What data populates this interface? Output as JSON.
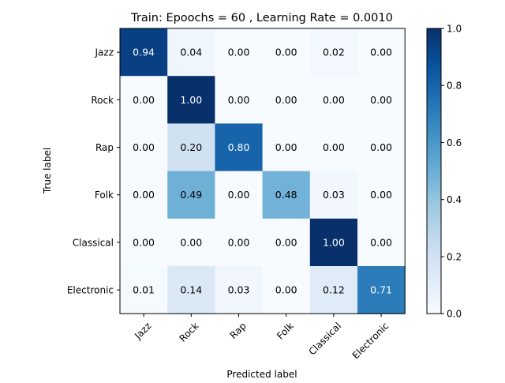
{
  "chart_data": {
    "type": "heatmap",
    "title": "Train: Epoochs =  60 , Learning Rate = 0.0010",
    "xlabel": "Predicted label",
    "ylabel": "True label",
    "x_categories": [
      "Jazz",
      "Rock",
      "Rap",
      "Folk",
      "Classical",
      "Electronic"
    ],
    "y_categories": [
      "Jazz",
      "Rock",
      "Rap",
      "Folk",
      "Classical",
      "Electronic"
    ],
    "values": [
      [
        0.94,
        0.04,
        0.0,
        0.0,
        0.02,
        0.0
      ],
      [
        0.0,
        1.0,
        0.0,
        0.0,
        0.0,
        0.0
      ],
      [
        0.0,
        0.2,
        0.8,
        0.0,
        0.0,
        0.0
      ],
      [
        0.0,
        0.49,
        0.0,
        0.48,
        0.03,
        0.0
      ],
      [
        0.0,
        0.0,
        0.0,
        0.0,
        1.0,
        0.0
      ],
      [
        0.01,
        0.14,
        0.03,
        0.0,
        0.12,
        0.71
      ]
    ],
    "value_labels": [
      [
        "0.94",
        "0.04",
        "0.00",
        "0.00",
        "0.02",
        "0.00"
      ],
      [
        "0.00",
        "1.00",
        "0.00",
        "0.00",
        "0.00",
        "0.00"
      ],
      [
        "0.00",
        "0.20",
        "0.80",
        "0.00",
        "0.00",
        "0.00"
      ],
      [
        "0.00",
        "0.49",
        "0.00",
        "0.48",
        "0.03",
        "0.00"
      ],
      [
        "0.00",
        "0.00",
        "0.00",
        "0.00",
        "1.00",
        "0.00"
      ],
      [
        "0.01",
        "0.14",
        "0.03",
        "0.00",
        "0.12",
        "0.71"
      ]
    ],
    "colormap": "Blues",
    "colorbar": {
      "range": [
        0.0,
        1.0
      ],
      "ticks": [
        0.0,
        0.2,
        0.4,
        0.6,
        0.8,
        1.0
      ],
      "tick_labels": [
        "0.0",
        "0.2",
        "0.4",
        "0.6",
        "0.8",
        "1.0"
      ]
    },
    "x_tick_rotation_deg": 45,
    "grid": false,
    "colors": {
      "low": "#f7fbff",
      "high": "#08306b",
      "text_dark": "#000000",
      "text_light": "#ffffff"
    }
  }
}
